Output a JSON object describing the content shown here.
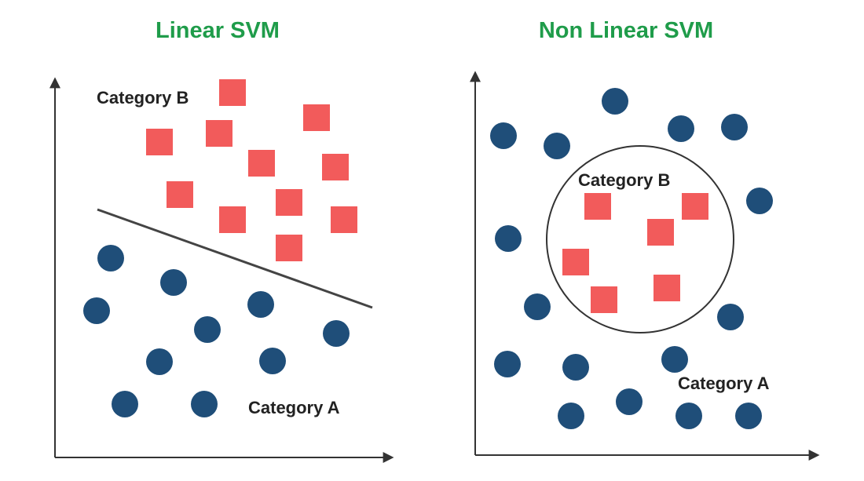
{
  "colors": {
    "title": "#1f9c4a",
    "category_a": "#1f4e79",
    "category_b": "#f25b5b",
    "axis": "#333333",
    "boundary": "#444444",
    "label": "#222222"
  },
  "linear": {
    "title": "Linear SVM",
    "category_a_label": "Category A",
    "category_b_label": "Category B",
    "boundary_shape": "straight line"
  },
  "nonlinear": {
    "title": "Non Linear SVM",
    "category_a_label": "Category A",
    "category_b_label": "Category B",
    "boundary_shape": "circle"
  }
}
